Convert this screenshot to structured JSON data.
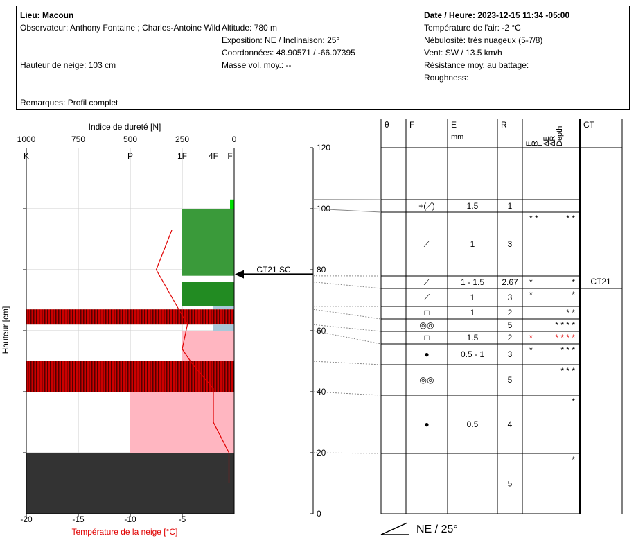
{
  "header": {
    "lieu": "Lieu: Macoun",
    "observateur": "Observateur: Anthony Fontaine ; Charles-Antoine Wild",
    "altitude": "Altitude: 780 m",
    "exposition": "Exposition: NE / Inclinaison: 25°",
    "coordonnees": "Coordonnées: 48.90571 / -66.07395",
    "hauteur_neige": "Hauteur de neige: 103 cm",
    "masse_vol": "Masse vol. moy.: --",
    "remarques": "Remarques: Profil complet",
    "date": "Date / Heure: 2023-12-15 11:34 -05:00",
    "temp_air": "Température de l'air: -2 °C",
    "nebulosite": "Nébulosité: très nuageux (5-7/8)",
    "vent": "Vent: SW / 13.5 km/h",
    "resistance": "Résistance moy. au battage:",
    "roughness": "Roughness:"
  },
  "chart_data": {
    "type": "snow-profile",
    "hardness_axis": {
      "title": "Indice de dureté [N]",
      "ticks": [
        1000,
        750,
        500,
        250,
        0
      ],
      "hand_labels": [
        {
          "label": "K",
          "value": 1000
        },
        {
          "label": "P",
          "value": 500
        },
        {
          "label": "1F",
          "value": 250
        },
        {
          "label": "4F",
          "value": 100
        },
        {
          "label": "F",
          "value": 20
        }
      ],
      "range": [
        1000,
        0
      ]
    },
    "height_axis": {
      "title": "Hauteur [cm]",
      "ticks": [
        0,
        20,
        40,
        60,
        80,
        100,
        120
      ],
      "range": [
        0,
        120
      ]
    },
    "temperature_axis": {
      "title": "Température de la neige [°C]",
      "ticks": [
        -20,
        -15,
        -10,
        -5
      ],
      "range": [
        -20,
        0
      ]
    },
    "hardness_layers": [
      {
        "bottom": 100,
        "top": 103,
        "hardness": 20,
        "color": "#00e000",
        "pattern": "solid"
      },
      {
        "bottom": 78,
        "top": 100,
        "hardness": 250,
        "color": "#3a9a3a",
        "pattern": "solid"
      },
      {
        "bottom": 76,
        "top": 78,
        "hardness": 250,
        "color": "#ffffff",
        "pattern": "solid"
      },
      {
        "bottom": 68,
        "top": 76,
        "hardness": 250,
        "color": "#228b22",
        "pattern": "solid"
      },
      {
        "bottom": 67,
        "top": 68,
        "hardness": 100,
        "color": "#a8c8d8",
        "pattern": "solid"
      },
      {
        "bottom": 62,
        "top": 67,
        "hardness": 1000,
        "color": "#cc0000",
        "pattern": "striped"
      },
      {
        "bottom": 60,
        "top": 62,
        "hardness": 100,
        "color": "#a8c8d8",
        "pattern": "solid"
      },
      {
        "bottom": 50,
        "top": 60,
        "hardness": 250,
        "color": "#ffb6c1",
        "pattern": "solid"
      },
      {
        "bottom": 40,
        "top": 50,
        "hardness": 1000,
        "color": "#cc0000",
        "pattern": "striped"
      },
      {
        "bottom": 20,
        "top": 40,
        "hardness": 500,
        "color": "#ffb6c1",
        "pattern": "solid"
      },
      {
        "bottom": 0,
        "top": 20,
        "hardness": 1000,
        "color": "#333333",
        "pattern": "solid"
      }
    ],
    "temperature_profile": [
      {
        "t": -6.0,
        "h": 93
      },
      {
        "t": -7.5,
        "h": 80
      },
      {
        "t": -4.5,
        "h": 62
      },
      {
        "t": -5.0,
        "h": 54
      },
      {
        "t": -4.0,
        "h": 49
      },
      {
        "t": -2.0,
        "h": 41
      },
      {
        "t": -2.0,
        "h": 30
      },
      {
        "t": -0.5,
        "h": 20
      },
      {
        "t": -0.5,
        "h": 10
      }
    ],
    "test_marker": {
      "label": "CT21 SC",
      "height": 78.5
    },
    "slope_label": "NE / 25°",
    "table": {
      "headers": [
        "θ",
        "F",
        "E",
        "R",
        "E",
        "R",
        "F",
        "ΔE",
        "ΔR",
        "Depth",
        "CT"
      ],
      "e_unit": "mm",
      "rows": [
        {
          "top": 103,
          "bottom": 100,
          "f": "+(⟋)",
          "e": "1.5",
          "r": "1",
          "stars_left": "",
          "stars_right": "",
          "red": false,
          "ct": ""
        },
        {
          "top": 100,
          "bottom": 78,
          "f": "⟋",
          "e": "1",
          "r": "3",
          "stars_left": "* *",
          "stars_right": "* *",
          "red": false,
          "ct": ""
        },
        {
          "top": 78,
          "bottom": 76,
          "f": "⟋",
          "e": "1 - 1.5",
          "r": "2.67",
          "stars_left": "*",
          "stars_right": "*",
          "red": false,
          "ct": "CT21"
        },
        {
          "top": 76,
          "bottom": 68,
          "f": "⟋",
          "e": "1",
          "r": "3",
          "stars_left": "*",
          "stars_right": "*",
          "red": false,
          "ct": ""
        },
        {
          "top": 68,
          "bottom": 67,
          "f": "□",
          "e": "1",
          "r": "2",
          "stars_left": "",
          "stars_right": "*   *",
          "red": false,
          "ct": ""
        },
        {
          "top": 67,
          "bottom": 62,
          "f": "◎◎",
          "e": "",
          "r": "5",
          "stars_left": "",
          "stars_right": "* * * *",
          "red": false,
          "ct": ""
        },
        {
          "top": 62,
          "bottom": 60,
          "f": "□",
          "e": "1.5",
          "r": "2",
          "stars_left": "*",
          "stars_right": "* * * *",
          "red": true,
          "ct": ""
        },
        {
          "top": 60,
          "bottom": 50,
          "f": "●",
          "e": "0.5 - 1",
          "r": "3",
          "stars_left": "*",
          "stars_right": "* *   *",
          "red": false,
          "ct": ""
        },
        {
          "top": 50,
          "bottom": 40,
          "f": "◎◎",
          "e": "",
          "r": "5",
          "stars_left": "",
          "stars_right": "* * *",
          "red": false,
          "ct": ""
        },
        {
          "top": 40,
          "bottom": 20,
          "f": "●",
          "e": "0.5",
          "r": "4",
          "stars_left": "",
          "stars_right": "*",
          "red": false,
          "ct": ""
        },
        {
          "top": 20,
          "bottom": 0,
          "f": "",
          "e": "",
          "r": "5",
          "stars_left": "",
          "stars_right": "*",
          "red": false,
          "ct": ""
        }
      ]
    }
  }
}
